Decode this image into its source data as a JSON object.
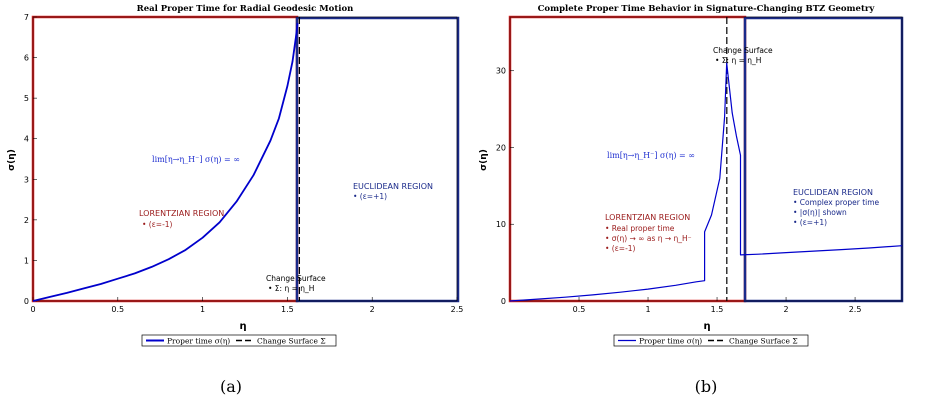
{
  "panel_labels": [
    "(a)",
    "(b)"
  ],
  "chart_data": [
    {
      "type": "line",
      "title": "Real Proper Time for Radial Geodesic Motion",
      "xlabel": "η",
      "ylabel": "σ(η)",
      "xlim": [
        0,
        2.5
      ],
      "ylim": [
        0,
        7
      ],
      "xticks": [
        "0",
        "0.5",
        "1",
        "1.5",
        "2",
        "2.5"
      ],
      "xtick_values": [
        0,
        0.5,
        1,
        1.5,
        2,
        2.5
      ],
      "yticks": [
        "0",
        "1",
        "2",
        "3",
        "4",
        "5",
        "6",
        "7"
      ],
      "ytick_values": [
        0,
        1,
        2,
        3,
        4,
        5,
        6,
        7
      ],
      "change_surface_x": 1.5708,
      "series": [
        {
          "name": "Proper time σ(η)",
          "color": "#0000cc",
          "x": [
            0,
            0.1,
            0.2,
            0.3,
            0.4,
            0.5,
            0.6,
            0.7,
            0.8,
            0.9,
            1.0,
            1.1,
            1.2,
            1.3,
            1.4,
            1.45,
            1.5,
            1.53,
            1.55,
            1.56
          ],
          "y": [
            0,
            0.1,
            0.2,
            0.31,
            0.42,
            0.55,
            0.68,
            0.84,
            1.03,
            1.26,
            1.56,
            1.94,
            2.45,
            3.1,
            3.95,
            4.5,
            5.3,
            5.9,
            6.5,
            6.85
          ]
        }
      ],
      "annotations": {
        "limit": "lim[η→η_H⁻] σ(η) = ∞",
        "lorentzian_title": "LORENTZIAN REGION",
        "lorentzian_items": [
          "•  (ε=-1)"
        ],
        "euclidean_title": "EUCLIDEAN REGION",
        "euclidean_items": [
          "•  (ε=+1)"
        ],
        "change_title": "Change  Surface",
        "change_item": "• Σ: η =  η_H"
      },
      "legend": {
        "position": "bottom-center",
        "entries": [
          "Proper time σ(η)",
          "Change Surface Σ"
        ]
      }
    },
    {
      "type": "line",
      "title": "Complete Proper Time Behavior in Signature-Changing BTZ Geometry",
      "xlabel": "η",
      "ylabel": "σ(η)",
      "xlim": [
        0,
        2.84
      ],
      "ylim": [
        0,
        37
      ],
      "xticks": [
        "0.5",
        "1",
        "1.5",
        "2",
        "2.5"
      ],
      "xtick_values": [
        0.5,
        1,
        1.5,
        2,
        2.5
      ],
      "yticks": [
        "0",
        "10",
        "20",
        "30"
      ],
      "ytick_values": [
        0,
        10,
        20,
        30
      ],
      "change_surface_x": 1.5708,
      "series": [
        {
          "name": "Proper time σ(η)",
          "color": "#0000cc",
          "x": [
            0,
            0.2,
            0.4,
            0.6,
            0.8,
            1.0,
            1.2,
            1.35,
            1.41,
            1.41,
            1.46,
            1.52,
            1.555,
            1.57,
            1.585,
            1.61,
            1.64,
            1.67,
            1.67,
            1.8,
            2.0,
            2.2,
            2.4,
            2.6,
            2.84
          ],
          "y": [
            0,
            0.25,
            0.5,
            0.8,
            1.15,
            1.55,
            2.05,
            2.5,
            2.65,
            9.0,
            11.2,
            16.0,
            24.0,
            31.0,
            28.5,
            24.5,
            21.5,
            19.0,
            6.0,
            6.1,
            6.3,
            6.5,
            6.7,
            6.9,
            7.2
          ]
        }
      ],
      "annotations": {
        "limit": "lim[η→η_H⁻] σ(η) = ∞",
        "lorentzian_title": "LORENTZIAN REGION",
        "lorentzian_items": [
          "• Real proper time",
          "• σ(η) → ∞ as η → η_H⁻",
          "•  (ε=-1)"
        ],
        "euclidean_title": "EUCLIDEAN REGION",
        "euclidean_items": [
          "• Complex proper time",
          "• |σ(η)| shown",
          "•  (ε=+1)"
        ],
        "change_title": "Change  Surface",
        "change_item": "• Σ: η =  η_H"
      },
      "legend": {
        "position": "bottom-center",
        "entries": [
          "Proper time σ(η)",
          "Change Surface Σ"
        ]
      }
    }
  ]
}
